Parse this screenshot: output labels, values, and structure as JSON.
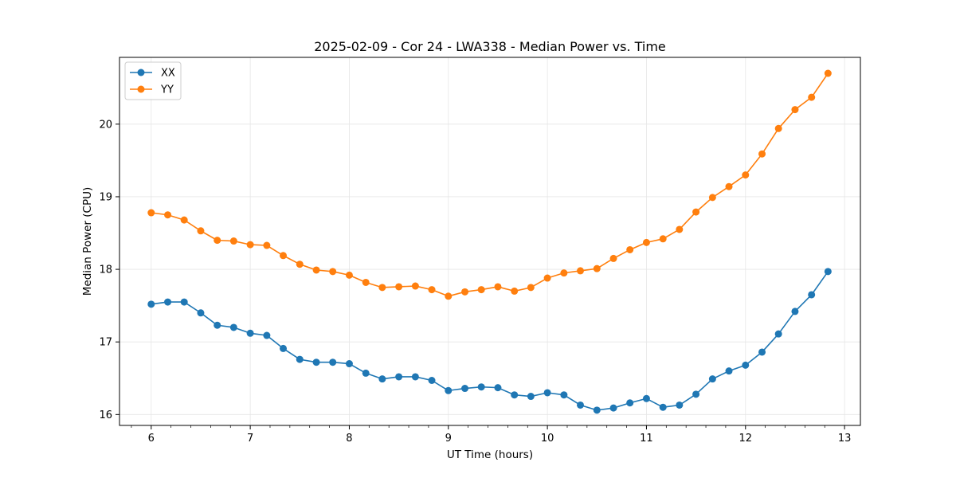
{
  "chart_data": {
    "type": "line",
    "title": "2025-02-09 - Cor 24 - LWA338 - Median Power vs. Time",
    "xlabel": "UT Time (hours)",
    "ylabel": "Median Power (CPU)",
    "xlim": [
      5.68,
      13.16
    ],
    "ylim": [
      15.85,
      20.92
    ],
    "xticks": [
      6,
      7,
      8,
      9,
      10,
      11,
      12,
      13
    ],
    "yticks": [
      16,
      17,
      18,
      19,
      20
    ],
    "xminor_step": 0.2,
    "grid": true,
    "legend": "top-left",
    "x": [
      6.0,
      6.167,
      6.333,
      6.5,
      6.667,
      6.833,
      7.0,
      7.167,
      7.333,
      7.5,
      7.667,
      7.833,
      8.0,
      8.167,
      8.333,
      8.5,
      8.667,
      8.833,
      9.0,
      9.167,
      9.333,
      9.5,
      9.667,
      9.833,
      10.0,
      10.167,
      10.333,
      10.5,
      10.667,
      10.833,
      11.0,
      11.167,
      11.333,
      11.5,
      11.667,
      11.833,
      12.0,
      12.167,
      12.333,
      12.5,
      12.667,
      12.833
    ],
    "series": [
      {
        "name": "XX",
        "color": "#1f77b4",
        "values": [
          17.52,
          17.55,
          17.55,
          17.4,
          17.23,
          17.2,
          17.12,
          17.09,
          16.91,
          16.76,
          16.72,
          16.72,
          16.7,
          16.57,
          16.49,
          16.52,
          16.52,
          16.47,
          16.33,
          16.36,
          16.38,
          16.37,
          16.27,
          16.25,
          16.3,
          16.27,
          16.13,
          16.06,
          16.09,
          16.16,
          16.22,
          16.1,
          16.13,
          16.28,
          16.49,
          16.6,
          16.68,
          16.86,
          17.11,
          17.42,
          17.65,
          17.97
        ]
      },
      {
        "name": "YY",
        "color": "#ff7f0e",
        "values": [
          18.78,
          18.75,
          18.68,
          18.53,
          18.4,
          18.39,
          18.34,
          18.33,
          18.19,
          18.07,
          17.99,
          17.97,
          17.92,
          17.82,
          17.75,
          17.76,
          17.77,
          17.72,
          17.63,
          17.69,
          17.72,
          17.76,
          17.7,
          17.75,
          17.88,
          17.95,
          17.98,
          18.01,
          18.15,
          18.27,
          18.37,
          18.42,
          18.55,
          18.79,
          18.99,
          19.14,
          19.3,
          19.59,
          19.94,
          20.2,
          20.37,
          20.7
        ]
      }
    ]
  }
}
